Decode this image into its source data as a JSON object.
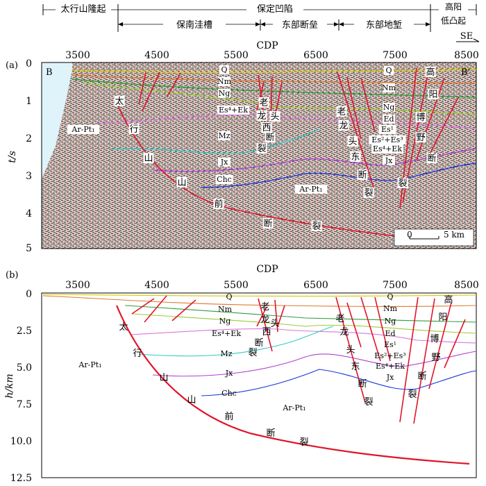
{
  "header": {
    "row1": [
      {
        "label": "太行山隆起"
      },
      {
        "label": "保定凹陷"
      },
      {
        "label": "高阳"
      }
    ],
    "row2": [
      {
        "label": "保南洼槽"
      },
      {
        "label": "东部断垒"
      },
      {
        "label": "东部地堑"
      },
      {
        "label": "低凸起"
      }
    ],
    "direction": "SE"
  },
  "panel_a": {
    "label": "(a)",
    "cdp_title": "CDP",
    "cdp_ticks": [
      "3500",
      "4500",
      "5500",
      "6500",
      "7500",
      "8500"
    ],
    "y_axis_label": "t/s",
    "y_ticks": [
      "0",
      "1",
      "2",
      "3",
      "4",
      "5"
    ],
    "corner_left": "B",
    "corner_right": "B'",
    "scale_bar": {
      "start": "0",
      "end": "5 km"
    },
    "labels": [
      "Q",
      "Nm",
      "Ng",
      "Es⁴+Ek",
      "Mz",
      "Jx",
      "Chc",
      "Ar-Pt₁",
      "Ar-Pt₁",
      "Q",
      "Nm",
      "Ng",
      "Ed",
      "Es¹",
      "Es²+Es³",
      "Es⁴+Ek",
      "Jx"
    ],
    "fault_chars": {
      "taihang": [
        "太",
        "行",
        "山",
        "山",
        "前",
        "断",
        "裂"
      ],
      "laolong_west": [
        "老",
        "龙",
        "头",
        "西",
        "断",
        "裂"
      ],
      "laolong_east": [
        "老",
        "龙",
        "头",
        "东",
        "断",
        "裂"
      ],
      "gaoyang": [
        "高",
        "阳",
        "博",
        "野",
        "断",
        "裂"
      ]
    }
  },
  "panel_b": {
    "label": "(b)",
    "cdp_title": "CDP",
    "cdp_ticks": [
      "3500",
      "4500",
      "5500",
      "6500",
      "7500",
      "8500"
    ],
    "y_axis_label": "h/km",
    "y_ticks": [
      "0",
      "2.5",
      "5.0",
      "7.5",
      "10.0",
      "12.5"
    ],
    "labels": [
      "Q",
      "Nm",
      "Ng",
      "Es⁴+Ek",
      "Mz",
      "Jx",
      "Chc",
      "Ar-Pt₁",
      "Ar-Pt₁",
      "Q",
      "Nm",
      "Ng",
      "Ed",
      "Es¹",
      "Es²+Es³",
      "Es⁴+Ek",
      "Jx"
    ],
    "fault_chars": {
      "taihang": [
        "太",
        "行",
        "山",
        "山",
        "前",
        "断",
        "裂"
      ],
      "laolong_west": [
        "老",
        "龙",
        "头",
        "西",
        "断",
        "裂"
      ],
      "laolong_east": [
        "老",
        "龙",
        "头",
        "东",
        "断",
        "裂"
      ],
      "gaoyang": [
        "高",
        "阳",
        "博",
        "野",
        "断",
        "裂"
      ]
    }
  },
  "colors": {
    "fault": "#e0142a",
    "Q": "#d6c800",
    "Nm": "#e07a30",
    "Ng": "#2e9e3a",
    "Es": "#9acd32",
    "Mz": "#d878d8",
    "Jx": "#30c8c8",
    "Chc": "#b040d0",
    "base": "#1a36d8",
    "sky": "#dff3fb"
  }
}
